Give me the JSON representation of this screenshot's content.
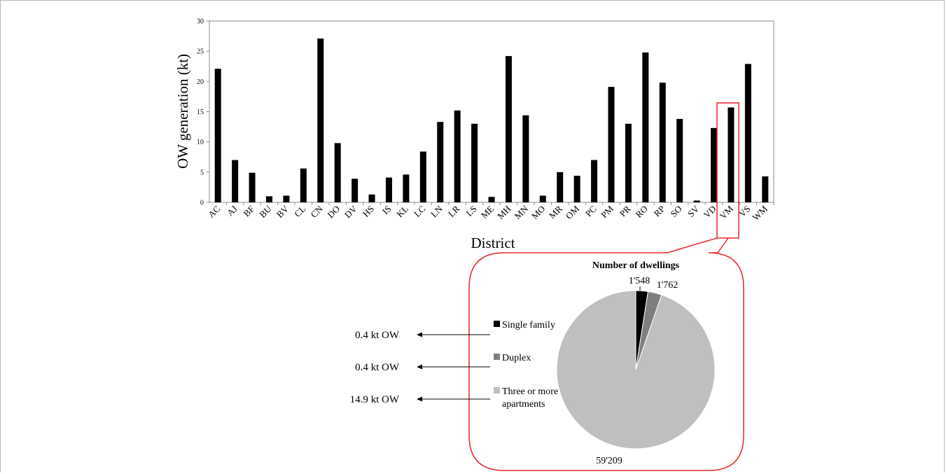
{
  "chart_data": [
    {
      "type": "bar",
      "title": "",
      "xlabel": "District",
      "ylabel": "OW generation (kt)",
      "ylim": [
        0,
        30
      ],
      "yticks": [
        0,
        5,
        10,
        15,
        20,
        25,
        30
      ],
      "grid": false,
      "categories": [
        "AC",
        "AJ",
        "BF",
        "BU",
        "BV",
        "CL",
        "CN",
        "DO",
        "DV",
        "HS",
        "IS",
        "KL",
        "LC",
        "LN",
        "LR",
        "LS",
        "ME",
        "MH",
        "MN",
        "MO",
        "MR",
        "OM",
        "PC",
        "PM",
        "PR",
        "RO",
        "RP",
        "SO",
        "SV",
        "VD",
        "VM",
        "VS",
        "WM"
      ],
      "values": [
        22.1,
        7.0,
        4.9,
        1.0,
        1.1,
        5.6,
        27.1,
        9.8,
        3.9,
        1.3,
        4.1,
        4.6,
        8.4,
        13.3,
        15.2,
        13.0,
        0.9,
        24.2,
        14.4,
        1.1,
        5.0,
        4.4,
        7.0,
        19.1,
        13.0,
        24.8,
        19.8,
        13.8,
        0.3,
        12.3,
        15.7,
        22.9,
        4.3
      ],
      "highlight": "VM",
      "highlight_color": "#e8262a",
      "bar_color": "#000000"
    },
    {
      "type": "pie",
      "title": "Number of dwellings",
      "district": "VM",
      "slices": [
        {
          "label": "Single family",
          "value": 1548,
          "value_label": "1'548",
          "color": "#000000",
          "ow": "0.4 kt OW"
        },
        {
          "label": "Duplex",
          "value": 1762,
          "value_label": "1'762",
          "color": "#7f7f7f",
          "ow": "0.4 kt OW"
        },
        {
          "label": "Three or more apartments",
          "value": 59209,
          "value_label": "59'209",
          "color": "#bfbfbf",
          "ow": "14.9 kt OW"
        }
      ],
      "legend_lines": [
        [
          "Single family"
        ],
        [
          "Duplex"
        ],
        [
          "Three or more",
          "apartments"
        ]
      ],
      "legend_position": "left",
      "border_color": "#e8262a"
    }
  ]
}
